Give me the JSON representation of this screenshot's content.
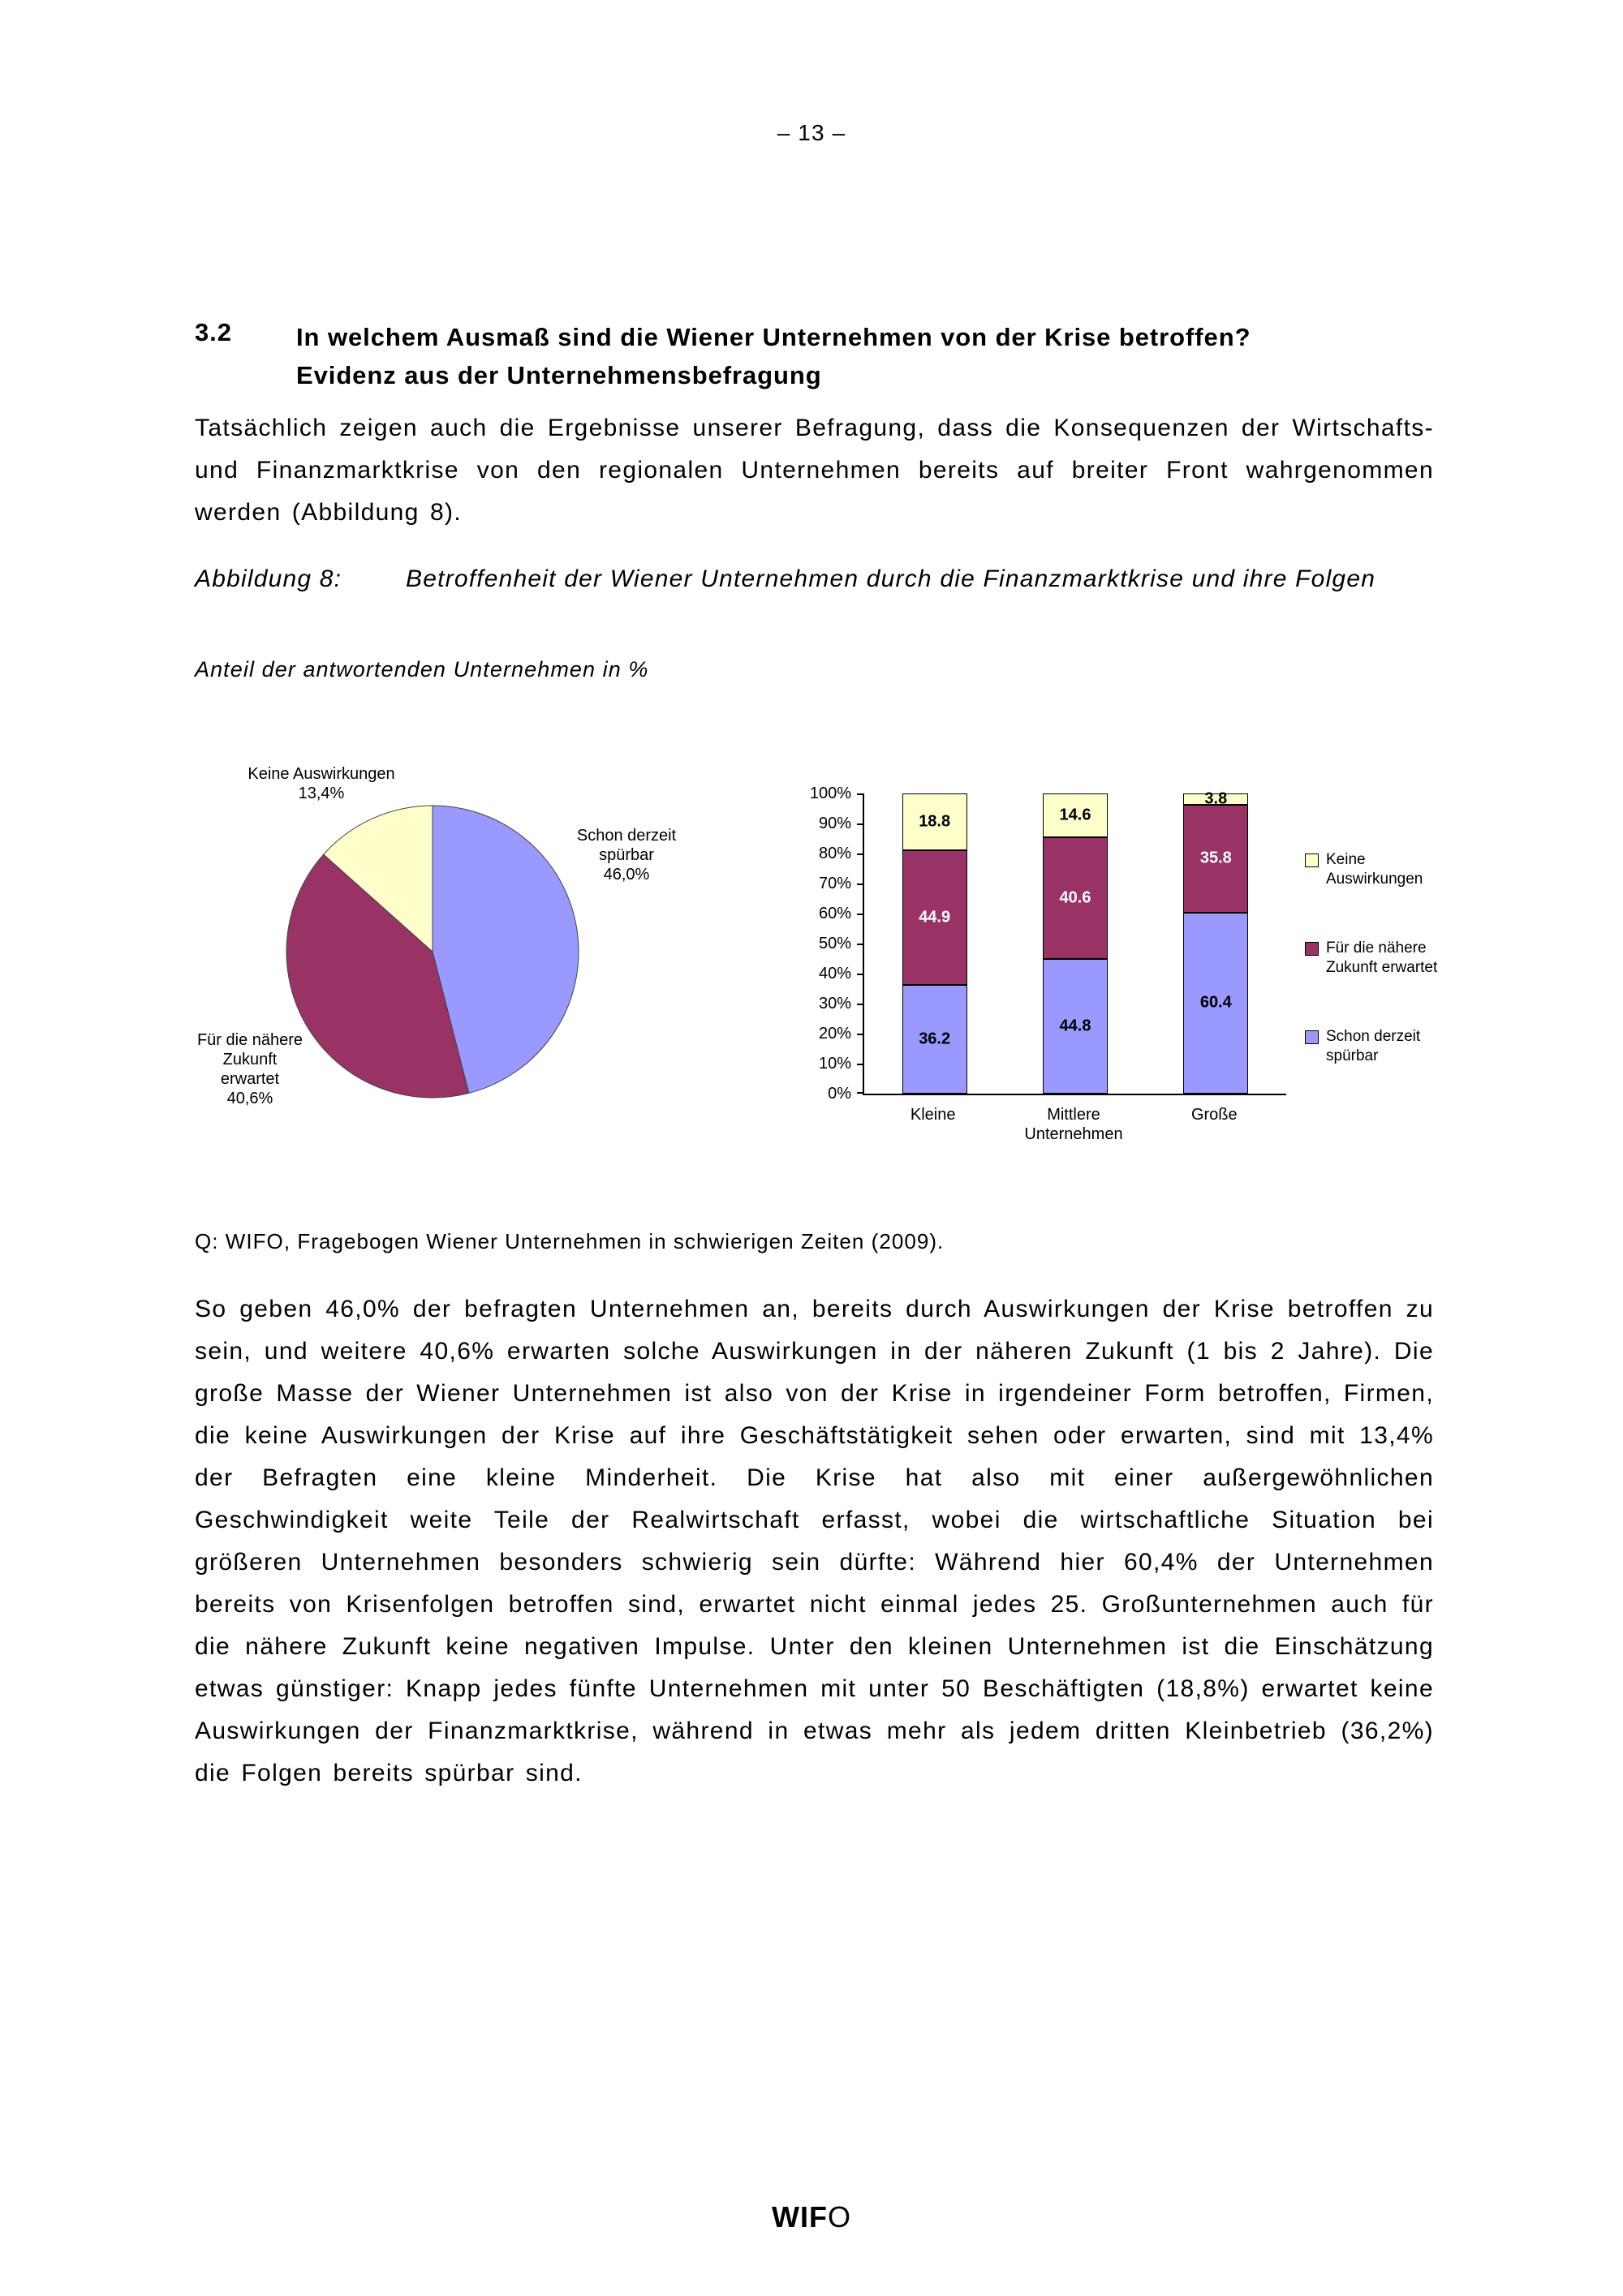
{
  "page": {
    "number": "– 13 –"
  },
  "footer": {
    "logo_wif": "WIF",
    "logo_o": "O"
  },
  "section": {
    "number": "3.2",
    "title_line1": "In welchem Ausmaß sind die Wiener Unternehmen von der Krise betroffen?",
    "title_line2": "Evidenz aus der Unternehmensbefragung"
  },
  "paragraphs": {
    "p1": "Tatsächlich zeigen auch die Ergebnisse unserer Befragung, dass die Konsequenzen der Wirtschafts- und Finanzmarktkrise von den regionalen Unternehmen bereits auf breiter Front wahrgenommen werden (Abbildung 8).",
    "p2": "So geben 46,0% der befragten Unternehmen an, bereits durch Auswirkungen der Krise betroffen zu sein, und weitere 40,6% erwarten solche Auswirkungen in der näheren Zukunft (1 bis 2 Jahre). Die große Masse der Wiener Unternehmen ist also von der Krise in irgendeiner Form betroffen, Firmen, die keine Auswirkungen der Krise auf ihre Geschäftstätigkeit sehen oder erwarten, sind mit 13,4% der Befragten eine kleine Minderheit. Die Krise hat also mit einer außergewöhnlichen Geschwindigkeit weite Teile der Realwirtschaft erfasst, wobei die wirtschaftliche Situation bei größeren Unternehmen besonders schwierig sein dürfte: Während hier 60,4% der Unternehmen bereits von Krisenfolgen betroffen sind, erwartet nicht einmal jedes 25. Großunternehmen auch für die nähere Zukunft keine negativen Impulse. Unter den kleinen Unternehmen ist die Einschätzung etwas günstiger: Knapp jedes fünfte Unternehmen mit unter 50 Beschäftigten (18,8%) erwartet keine Auswirkungen der Finanzmarktkrise, während in etwas mehr als jedem dritten Kleinbetrieb (36,2%) die Folgen bereits spürbar sind."
  },
  "figure": {
    "caption_label": "Abbildung 8:",
    "caption_text": "Betroffenheit der Wiener Unternehmen durch die Finanzmarktkrise und ihre Folgen",
    "subcaption": "Anteil der antwortenden Unternehmen in %",
    "source": "Q: WIFO, Fragebogen Wiener Unternehmen in schwierigen Zeiten (2009)."
  },
  "chart_data": [
    {
      "type": "pie",
      "start_angle": "top",
      "direction": "clockwise",
      "slices": [
        {
          "label": "Schon derzeit spürbar",
          "value": 46.0,
          "color": "#9999FF",
          "display": "Schon derzeit\nspürbar\n46,0%"
        },
        {
          "label": "Für die nähere Zukunft erwartet",
          "value": 40.6,
          "color": "#993366",
          "display": "Für die nähere\nZukunft\nerwartet\n40,6%"
        },
        {
          "label": "Keine Auswirkungen",
          "value": 13.4,
          "color": "#FFFFCC",
          "display": "Keine Auswirkungen\n13,4%"
        }
      ]
    },
    {
      "type": "bar",
      "subtype": "stacked-100",
      "categories": [
        "Kleine",
        "Mittlere\nUnternehmen",
        "Große"
      ],
      "series": [
        {
          "name": "Schon derzeit spürbar",
          "color": "#9999FF",
          "label_color": "#000000",
          "values": [
            36.2,
            44.8,
            60.4
          ]
        },
        {
          "name": "Für die nähere Zukunft erwartet",
          "color": "#993366",
          "label_color": "#FFFFFF",
          "values": [
            44.9,
            40.6,
            35.8
          ]
        },
        {
          "name": "Keine Auswirkungen",
          "color": "#FFFFCC",
          "label_color": "#000000",
          "values": [
            18.8,
            14.6,
            3.8
          ]
        }
      ],
      "y_ticks": [
        "100%",
        "90%",
        "80%",
        "70%",
        "60%",
        "50%",
        "40%",
        "30%",
        "20%",
        "10%",
        "0%"
      ],
      "ylim": [
        0,
        100
      ],
      "legend": [
        {
          "label": "Keine\nAuswirkungen",
          "color": "#FFFFCC"
        },
        {
          "label": "Für die nähere\nZukunft erwartet",
          "color": "#993366"
        },
        {
          "label": "Schon derzeit\nspürbar",
          "color": "#9999FF"
        }
      ]
    }
  ]
}
